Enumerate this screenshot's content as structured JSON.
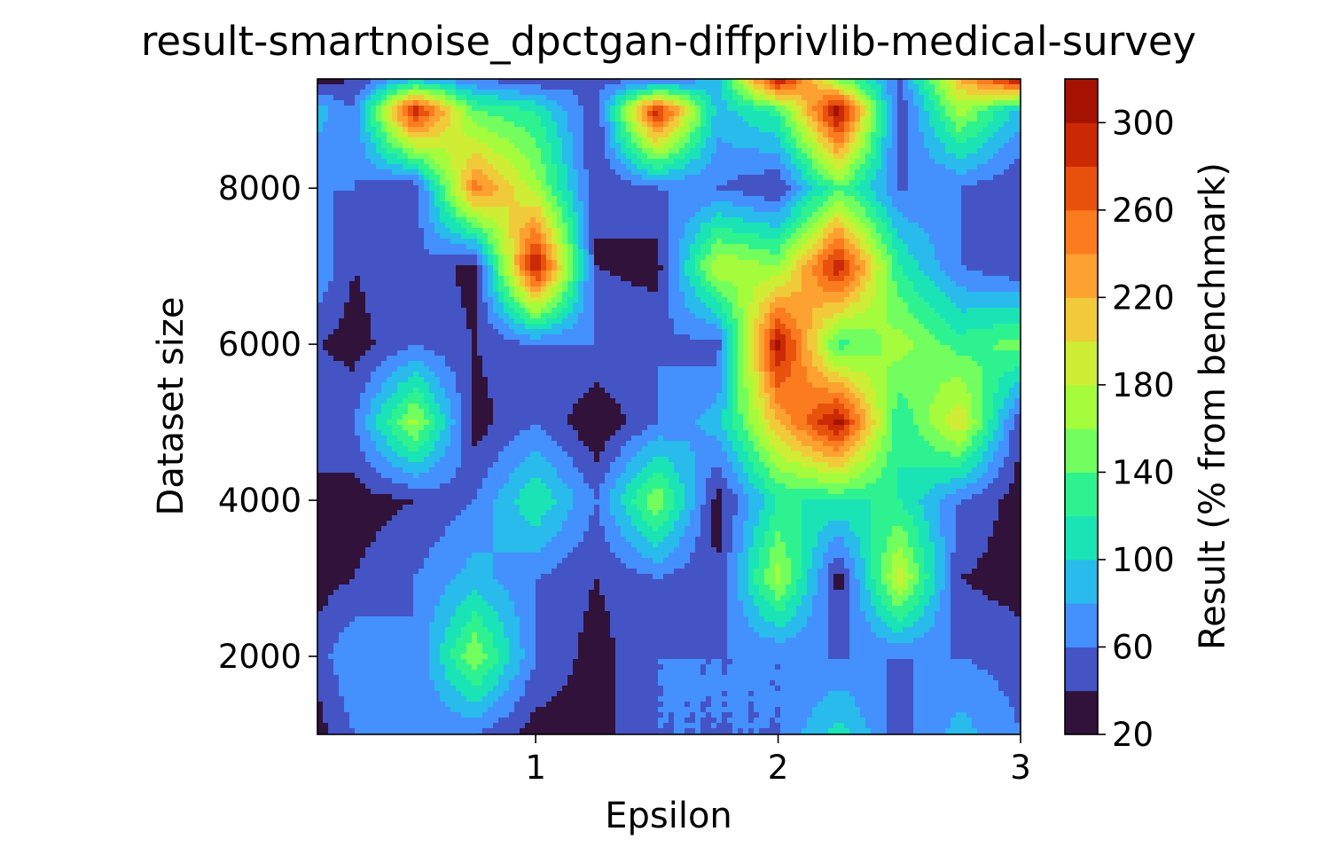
{
  "chart_data": {
    "type": "heatmap",
    "title": "result-smartnoise_dpctgan-diffprivlib-medical-survey",
    "xlabel": "Epsilon",
    "ylabel": "Dataset size",
    "xlim": [
      0.1,
      3.0
    ],
    "ylim": [
      1000,
      9400
    ],
    "x_ticks": [
      1,
      2,
      3
    ],
    "y_ticks": [
      2000,
      4000,
      6000,
      8000
    ],
    "x": [
      0.1,
      0.25,
      0.5,
      0.75,
      1.0,
      1.25,
      1.5,
      1.75,
      2.0,
      2.25,
      2.5,
      2.75,
      3.0
    ],
    "y": [
      1000,
      2000,
      3000,
      4000,
      5000,
      6000,
      7000,
      8000,
      9000,
      9400
    ],
    "z": [
      [
        30,
        60,
        60,
        60,
        30,
        30,
        60,
        60,
        60,
        110,
        50,
        90,
        60
      ],
      [
        50,
        80,
        60,
        160,
        60,
        30,
        60,
        60,
        60,
        60,
        60,
        60,
        50
      ],
      [
        30,
        40,
        60,
        90,
        60,
        40,
        60,
        40,
        170,
        30,
        190,
        40,
        30
      ],
      [
        30,
        30,
        40,
        60,
        120,
        60,
        160,
        30,
        120,
        120,
        120,
        60,
        30
      ],
      [
        60,
        60,
        170,
        30,
        60,
        20,
        60,
        90,
        220,
        310,
        120,
        200,
        40
      ],
      [
        40,
        30,
        60,
        40,
        60,
        60,
        60,
        50,
        310,
        130,
        170,
        130,
        150
      ],
      [
        80,
        40,
        60,
        30,
        310,
        40,
        30,
        180,
        160,
        300,
        120,
        60,
        40
      ],
      [
        60,
        60,
        40,
        250,
        170,
        40,
        60,
        60,
        40,
        140,
        60,
        60,
        40
      ],
      [
        90,
        60,
        300,
        140,
        120,
        40,
        300,
        90,
        130,
        320,
        40,
        170,
        90
      ],
      [
        30,
        40,
        90,
        60,
        40,
        60,
        40,
        90,
        310,
        150,
        60,
        220,
        310
      ]
    ],
    "levels": [
      20,
      40,
      60,
      80,
      100,
      120,
      140,
      160,
      180,
      200,
      220,
      240,
      260,
      280,
      300,
      320
    ],
    "colorbar": {
      "label": "Result (% from benchmark)",
      "ticks": [
        20,
        60,
        100,
        140,
        180,
        220,
        260,
        300
      ],
      "colors": [
        "#30123b",
        "#4454c4",
        "#4490fe",
        "#28bbec",
        "#1ae4b6",
        "#2ef28f",
        "#72fe5e",
        "#a4fc3c",
        "#cfed34",
        "#f1ca3a",
        "#fda131",
        "#fb7c1f",
        "#e9520d",
        "#cb2a04",
        "#a51201",
        "#7a0403"
      ]
    }
  }
}
